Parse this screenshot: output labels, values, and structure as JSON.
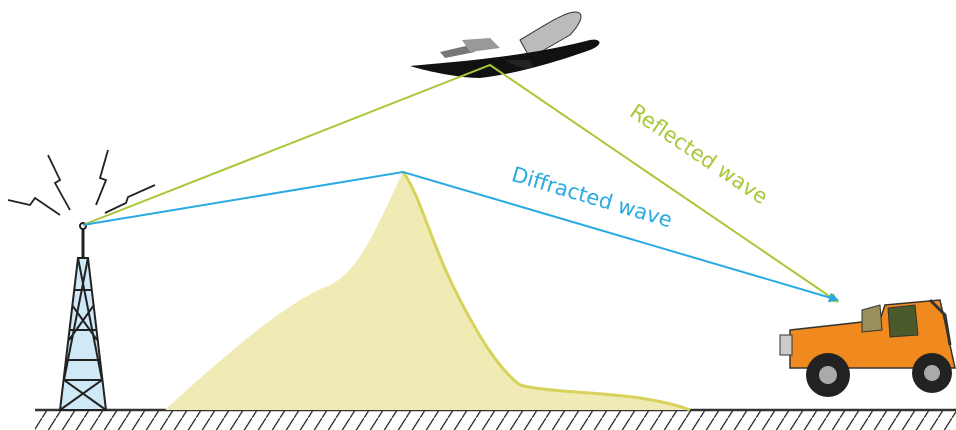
{
  "waves": [
    {
      "label": "Reflected wave"
    },
    {
      "label": "Diffracted wave"
    }
  ]
}
